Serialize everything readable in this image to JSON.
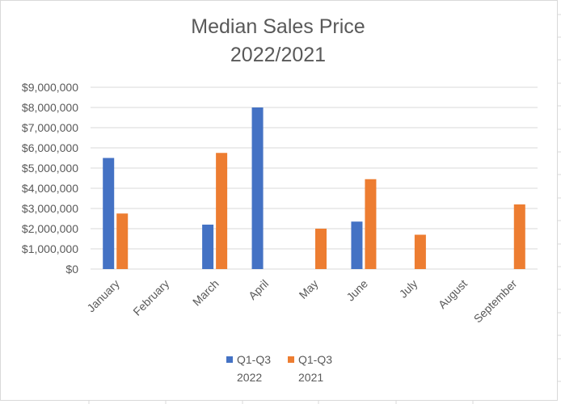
{
  "chart_data": {
    "type": "bar",
    "title_lines": [
      "Median Sales Price",
      "2022/2021"
    ],
    "categories": [
      "January",
      "February",
      "March",
      "April",
      "May",
      "June",
      "July",
      "August",
      "September"
    ],
    "series": [
      {
        "name_lines": [
          "Q1-Q3",
          "2022"
        ],
        "color": "#4472c4",
        "values": [
          5500000,
          null,
          2200000,
          8000000,
          null,
          2350000,
          null,
          null,
          null
        ]
      },
      {
        "name_lines": [
          "Q1-Q3",
          "2021"
        ],
        "color": "#ed7d31",
        "values": [
          2750000,
          null,
          5750000,
          null,
          2000000,
          4450000,
          1700000,
          null,
          3200000
        ]
      }
    ],
    "y_ticks": [
      "$0",
      "$1,000,000",
      "$2,000,000",
      "$3,000,000",
      "$4,000,000",
      "$5,000,000",
      "$6,000,000",
      "$7,000,000",
      "$8,000,000",
      "$9,000,000"
    ],
    "ylim": [
      0,
      9000000
    ],
    "grid": true,
    "legend_position": "bottom"
  }
}
